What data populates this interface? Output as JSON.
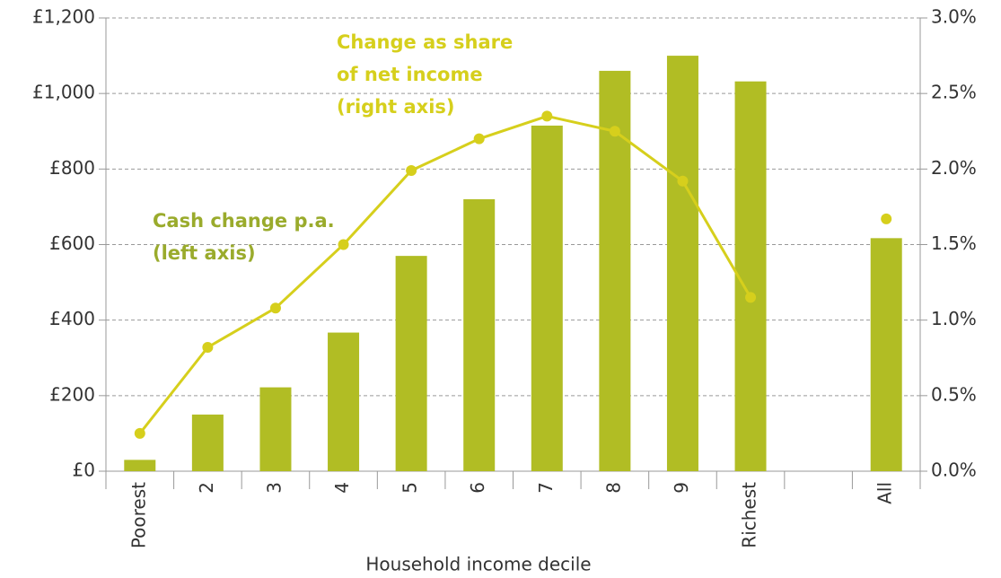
{
  "chart_data": {
    "type": "bar",
    "x_label": "Household income decile",
    "categories": [
      "Poorest",
      "2",
      "3",
      "4",
      "5",
      "6",
      "7",
      "8",
      "9",
      "Richest",
      null,
      "All"
    ],
    "series": [
      {
        "name": "Cash change p.a.",
        "type": "bar",
        "color": "#b1bd24",
        "axis": "y",
        "values": [
          30,
          150,
          222,
          367,
          570,
          720,
          915,
          1060,
          1100,
          1032,
          null,
          617
        ]
      },
      {
        "name": "Change as share of net income",
        "type": "line",
        "color": "#d6cf1c",
        "axis": "y2",
        "values": [
          0.25,
          0.82,
          1.08,
          1.5,
          1.99,
          2.2,
          2.35,
          2.25,
          1.92,
          1.15,
          null,
          1.67
        ]
      }
    ],
    "annotations": [
      {
        "lines": [
          "Cash change p.a.",
          "(left axis)"
        ],
        "color": "#9aab2c"
      },
      {
        "lines": [
          "Change as share",
          "of net income",
          "(right axis)"
        ],
        "color": "#d6cf1c"
      }
    ],
    "ylim": [
      0,
      1200
    ],
    "yticks": [
      {
        "value": 0,
        "label": "£0"
      },
      {
        "value": 200,
        "label": "£200"
      },
      {
        "value": 400,
        "label": "£400"
      },
      {
        "value": 600,
        "label": "£600"
      },
      {
        "value": 800,
        "label": "£800"
      },
      {
        "value": 1000,
        "label": "£1,000"
      },
      {
        "value": 1200,
        "label": "£1,200"
      }
    ],
    "y2lim": [
      0,
      3
    ],
    "y2ticks": [
      {
        "value": 0,
        "label": "0.0%"
      },
      {
        "value": 0.5,
        "label": "0.5%"
      },
      {
        "value": 1,
        "label": "1.0%"
      },
      {
        "value": 1.5,
        "label": "1.5%"
      },
      {
        "value": 2,
        "label": "2.0%"
      },
      {
        "value": 2.5,
        "label": "2.5%"
      },
      {
        "value": 3,
        "label": "3.0%"
      }
    ],
    "grid": true
  }
}
